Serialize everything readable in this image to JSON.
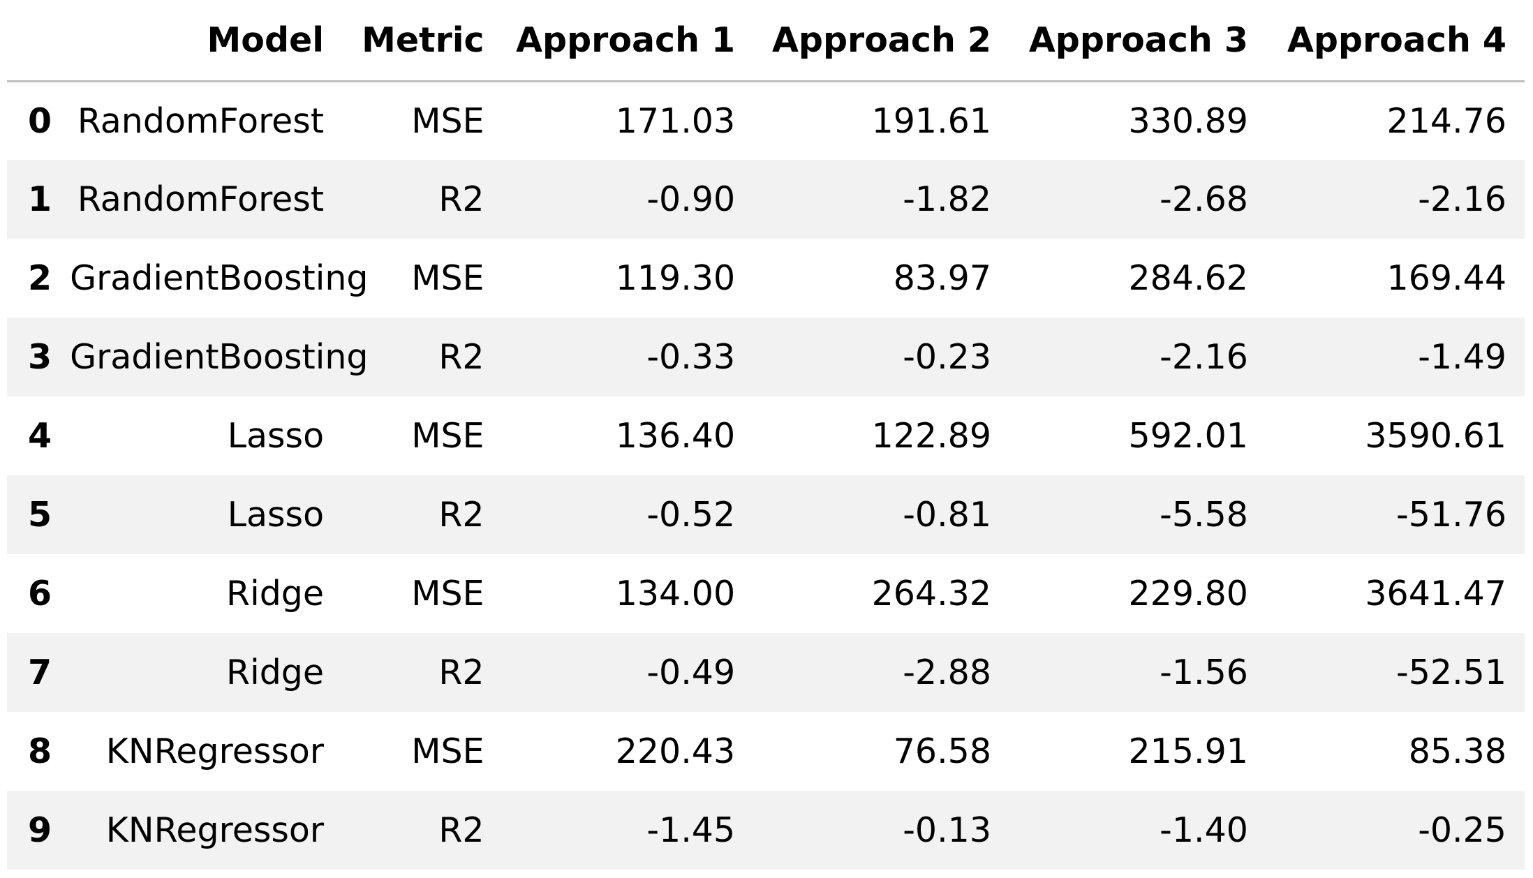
{
  "table": {
    "columns": [
      "",
      "Model",
      "Metric",
      "Approach 1",
      "Approach 2",
      "Approach 3",
      "Approach 4"
    ],
    "rows": [
      {
        "index": "0",
        "model": "RandomForest",
        "metric": "MSE",
        "a1": "171.03",
        "a2": "191.61",
        "a3": "330.89",
        "a4": "214.76"
      },
      {
        "index": "1",
        "model": "RandomForest",
        "metric": "R2",
        "a1": "-0.90",
        "a2": "-1.82",
        "a3": "-2.68",
        "a4": "-2.16"
      },
      {
        "index": "2",
        "model": "GradientBoosting",
        "metric": "MSE",
        "a1": "119.30",
        "a2": "83.97",
        "a3": "284.62",
        "a4": "169.44"
      },
      {
        "index": "3",
        "model": "GradientBoosting",
        "metric": "R2",
        "a1": "-0.33",
        "a2": "-0.23",
        "a3": "-2.16",
        "a4": "-1.49"
      },
      {
        "index": "4",
        "model": "Lasso",
        "metric": "MSE",
        "a1": "136.40",
        "a2": "122.89",
        "a3": "592.01",
        "a4": "3590.61"
      },
      {
        "index": "5",
        "model": "Lasso",
        "metric": "R2",
        "a1": "-0.52",
        "a2": "-0.81",
        "a3": "-5.58",
        "a4": "-51.76"
      },
      {
        "index": "6",
        "model": "Ridge",
        "metric": "MSE",
        "a1": "134.00",
        "a2": "264.32",
        "a3": "229.80",
        "a4": "3641.47"
      },
      {
        "index": "7",
        "model": "Ridge",
        "metric": "R2",
        "a1": "-0.49",
        "a2": "-2.88",
        "a3": "-1.56",
        "a4": "-52.51"
      },
      {
        "index": "8",
        "model": "KNRegressor",
        "metric": "MSE",
        "a1": "220.43",
        "a2": "76.58",
        "a3": "215.91",
        "a4": "85.38"
      },
      {
        "index": "9",
        "model": "KNRegressor",
        "metric": "R2",
        "a1": "-1.45",
        "a2": "-0.13",
        "a3": "-1.40",
        "a4": "-0.25"
      }
    ]
  },
  "colors": {
    "stripe": "#f2f2f2",
    "header_rule": "#bdbdbd",
    "text": "#000000",
    "background": "#ffffff"
  }
}
